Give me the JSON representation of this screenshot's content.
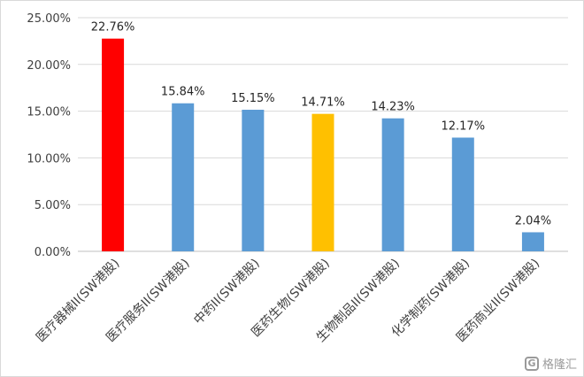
{
  "chart_data": {
    "type": "bar",
    "categories": [
      "医疗器械II(SW港股)",
      "医疗服务II(SW港股)",
      "中药II(SW港股)",
      "医药生物(SW港股)",
      "生物制品II(SW港股)",
      "化学制药(SW港股)",
      "医药商业II(SW港股)"
    ],
    "values": [
      22.76,
      15.84,
      15.15,
      14.71,
      14.23,
      12.17,
      2.04
    ],
    "value_labels": [
      "22.76%",
      "15.84%",
      "15.15%",
      "14.71%",
      "14.23%",
      "12.17%",
      "2.04%"
    ],
    "colors": [
      "#ff0000",
      "#5b9bd5",
      "#5b9bd5",
      "#ffc000",
      "#5b9bd5",
      "#5b9bd5",
      "#5b9bd5"
    ],
    "ylim": [
      0,
      25
    ],
    "yticks": [
      0,
      5,
      10,
      15,
      20,
      25
    ],
    "ytick_labels": [
      "0.00%",
      "5.00%",
      "10.00%",
      "15.00%",
      "20.00%",
      "25.00%"
    ],
    "grid": true,
    "title": "",
    "xlabel": "",
    "ylabel": ""
  },
  "watermark": {
    "logo_glyph": "G",
    "text": "格隆汇"
  }
}
